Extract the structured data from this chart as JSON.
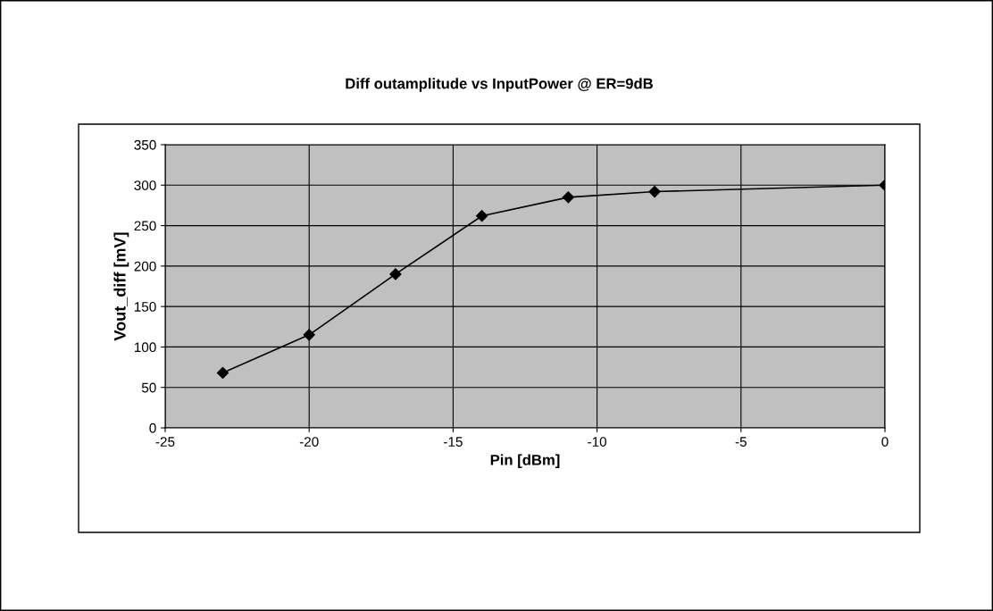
{
  "chart_data": {
    "type": "line",
    "title": "Diff outamplitude vs InputPower @ ER=9dB",
    "xlabel": "Pin [dBm]",
    "ylabel": "Vout_diff [mV]",
    "x": [
      -23,
      -20,
      -17,
      -14,
      -11,
      -8,
      0
    ],
    "series": [
      {
        "color": "#000000",
        "values": [
          68,
          115,
          190,
          262,
          285,
          292,
          300
        ]
      }
    ],
    "xlim": [
      -25,
      0
    ],
    "xticks": [
      -25,
      -20,
      -15,
      -10,
      -5,
      0
    ],
    "ylim": [
      0,
      350
    ],
    "yticks": [
      0,
      50,
      100,
      150,
      200,
      250,
      300,
      350
    ],
    "grid": true,
    "marker": "diamond",
    "line_style": "solid",
    "legend": false
  }
}
